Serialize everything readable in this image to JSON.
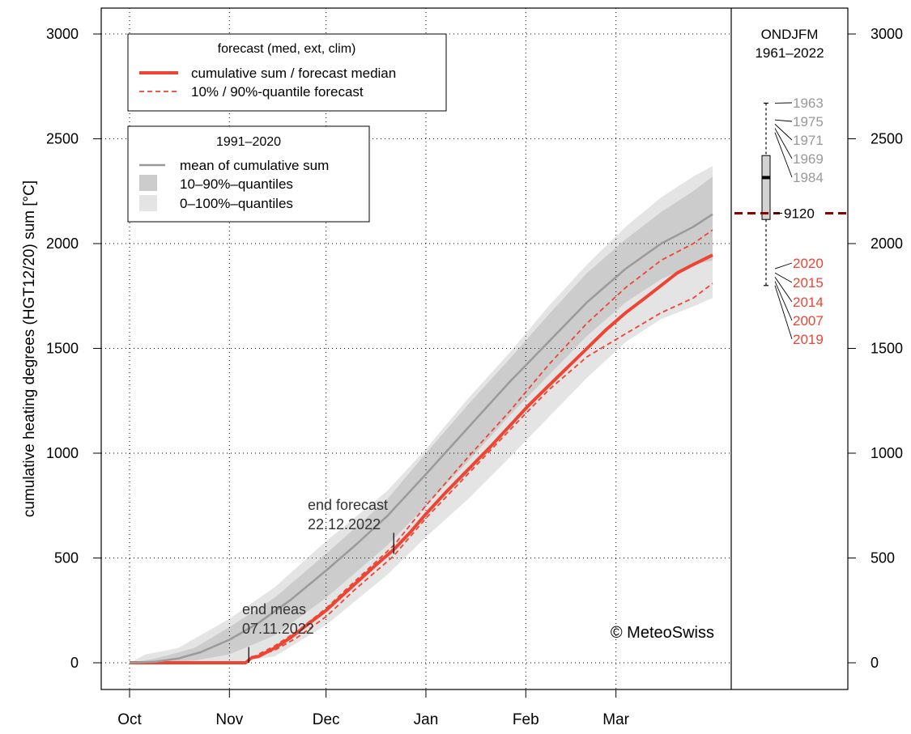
{
  "chart_data": {
    "type": "line",
    "ylabel": "cumulative heating degrees (HGT12/20) sum [°C]",
    "ylim": [
      0,
      3000
    ],
    "yticks": [
      0,
      500,
      1000,
      1500,
      2000,
      2500,
      3000
    ],
    "x_axis": {
      "unit": "days since 1 Oct",
      "month_ticks": [
        {
          "label": "Oct",
          "day": 0
        },
        {
          "label": "Nov",
          "day": 31
        },
        {
          "label": "Dec",
          "day": 61
        },
        {
          "label": "Jan",
          "day": 92
        },
        {
          "label": "Feb",
          "day": 123
        },
        {
          "label": "Mar",
          "day": 151
        }
      ],
      "end_day": 181
    },
    "grid": true,
    "series": [
      {
        "name": "cumulative sum / forecast median",
        "color": "#ee4433",
        "style": "solid",
        "points": [
          [
            0,
            0
          ],
          [
            36,
            0
          ],
          [
            38,
            25
          ],
          [
            40,
            30
          ],
          [
            45,
            70
          ],
          [
            50,
            120
          ],
          [
            55,
            180
          ],
          [
            61,
            250
          ],
          [
            66,
            320
          ],
          [
            71,
            390
          ],
          [
            76,
            460
          ],
          [
            82,
            540
          ],
          [
            87,
            620
          ],
          [
            92,
            710
          ],
          [
            98,
            810
          ],
          [
            105,
            920
          ],
          [
            112,
            1030
          ],
          [
            118,
            1130
          ],
          [
            124,
            1230
          ],
          [
            130,
            1320
          ],
          [
            136,
            1410
          ],
          [
            142,
            1500
          ],
          [
            148,
            1590
          ],
          [
            154,
            1670
          ],
          [
            160,
            1740
          ],
          [
            165,
            1800
          ],
          [
            170,
            1860
          ],
          [
            175,
            1900
          ],
          [
            181,
            1945
          ]
        ]
      },
      {
        "name": "10% / 90%-quantile forecast (upper)",
        "color": "#ee4433",
        "style": "dashed",
        "points": [
          [
            38,
            25
          ],
          [
            45,
            80
          ],
          [
            52,
            150
          ],
          [
            61,
            260
          ],
          [
            70,
            390
          ],
          [
            82,
            560
          ],
          [
            92,
            750
          ],
          [
            105,
            980
          ],
          [
            118,
            1200
          ],
          [
            130,
            1420
          ],
          [
            142,
            1620
          ],
          [
            154,
            1790
          ],
          [
            165,
            1920
          ],
          [
            175,
            2000
          ],
          [
            181,
            2065
          ]
        ]
      },
      {
        "name": "10% / 90%-quantile forecast (lower)",
        "color": "#ee4433",
        "style": "dashed",
        "points": [
          [
            38,
            25
          ],
          [
            45,
            60
          ],
          [
            52,
            120
          ],
          [
            61,
            220
          ],
          [
            70,
            350
          ],
          [
            82,
            510
          ],
          [
            92,
            690
          ],
          [
            105,
            900
          ],
          [
            118,
            1110
          ],
          [
            130,
            1300
          ],
          [
            142,
            1460
          ],
          [
            154,
            1570
          ],
          [
            165,
            1670
          ],
          [
            175,
            1740
          ],
          [
            181,
            1810
          ]
        ]
      },
      {
        "name": "mean of cumulative sum",
        "color": "#9a9a9a",
        "style": "solid",
        "points": [
          [
            0,
            0
          ],
          [
            8,
            5
          ],
          [
            15,
            20
          ],
          [
            22,
            50
          ],
          [
            31,
            110
          ],
          [
            40,
            190
          ],
          [
            50,
            300
          ],
          [
            61,
            440
          ],
          [
            70,
            560
          ],
          [
            80,
            700
          ],
          [
            92,
            900
          ],
          [
            105,
            1120
          ],
          [
            118,
            1340
          ],
          [
            130,
            1530
          ],
          [
            142,
            1720
          ],
          [
            154,
            1880
          ],
          [
            165,
            2000
          ],
          [
            175,
            2080
          ],
          [
            181,
            2140
          ]
        ]
      }
    ],
    "bands": [
      {
        "name": "0-100%-quantiles",
        "color": "#e4e4e4",
        "lower": [
          [
            0,
            0
          ],
          [
            31,
            0
          ],
          [
            45,
            30
          ],
          [
            61,
            180
          ],
          [
            80,
            420
          ],
          [
            92,
            600
          ],
          [
            105,
            780
          ],
          [
            118,
            980
          ],
          [
            130,
            1170
          ],
          [
            142,
            1360
          ],
          [
            154,
            1530
          ],
          [
            165,
            1640
          ],
          [
            175,
            1700
          ],
          [
            181,
            1740
          ]
        ],
        "upper": [
          [
            0,
            0
          ],
          [
            5,
            40
          ],
          [
            15,
            70
          ],
          [
            31,
            210
          ],
          [
            45,
            360
          ],
          [
            61,
            580
          ],
          [
            80,
            820
          ],
          [
            92,
            1020
          ],
          [
            105,
            1260
          ],
          [
            118,
            1480
          ],
          [
            130,
            1700
          ],
          [
            142,
            1900
          ],
          [
            154,
            2080
          ],
          [
            165,
            2220
          ],
          [
            175,
            2320
          ],
          [
            181,
            2370
          ]
        ]
      },
      {
        "name": "10-90%-quantiles",
        "color": "#cccccc",
        "lower": [
          [
            0,
            0
          ],
          [
            10,
            0
          ],
          [
            20,
            10
          ],
          [
            31,
            40
          ],
          [
            45,
            130
          ],
          [
            61,
            310
          ],
          [
            80,
            560
          ],
          [
            92,
            750
          ],
          [
            105,
            960
          ],
          [
            118,
            1180
          ],
          [
            130,
            1370
          ],
          [
            142,
            1560
          ],
          [
            154,
            1720
          ],
          [
            165,
            1830
          ],
          [
            175,
            1900
          ],
          [
            181,
            1920
          ]
        ],
        "upper": [
          [
            0,
            0
          ],
          [
            8,
            20
          ],
          [
            20,
            70
          ],
          [
            31,
            170
          ],
          [
            45,
            310
          ],
          [
            61,
            520
          ],
          [
            80,
            780
          ],
          [
            92,
            1000
          ],
          [
            105,
            1230
          ],
          [
            118,
            1450
          ],
          [
            130,
            1660
          ],
          [
            142,
            1860
          ],
          [
            154,
            2020
          ],
          [
            165,
            2150
          ],
          [
            175,
            2250
          ],
          [
            181,
            2320
          ]
        ]
      }
    ],
    "annotations": {
      "end_meas": {
        "line1": "end meas",
        "line2": "07.11.2022",
        "day": 37
      },
      "end_forecast": {
        "line1": "end forecast",
        "line2": "22.12.2022",
        "day": 82
      },
      "copyright": "© MeteoSwiss"
    },
    "legend_forecast": {
      "title": "forecast (med, ext, clim)",
      "items": [
        "cumulative sum / forecast median",
        "10% / 90%-quantile forecast"
      ]
    },
    "legend_clim": {
      "title": "1991–2020",
      "items": [
        "mean of cumulative sum",
        "10–90%–quantiles",
        "0–100%–quantiles"
      ]
    },
    "side_panel": {
      "title_line1": "ONDJFM",
      "title_line2": "1961–2022",
      "boxplot": {
        "min": 1800,
        "q1": 2115,
        "median": 2315,
        "q3": 2420,
        "max": 2670
      },
      "reference_label": "9120",
      "reference_value": 2145,
      "reference_color": "#8b0000",
      "high_years": [
        {
          "year": "1963",
          "value": 2670
        },
        {
          "year": "1975",
          "value": 2590
        },
        {
          "year": "1971",
          "value": 2570
        },
        {
          "year": "1969",
          "value": 2550
        },
        {
          "year": "1984",
          "value": 2530
        }
      ],
      "low_years": [
        {
          "year": "2020",
          "value": 1880
        },
        {
          "year": "2015",
          "value": 1860
        },
        {
          "year": "2014",
          "value": 1840
        },
        {
          "year": "2007",
          "value": 1820
        },
        {
          "year": "2019",
          "value": 1800
        }
      ]
    }
  }
}
